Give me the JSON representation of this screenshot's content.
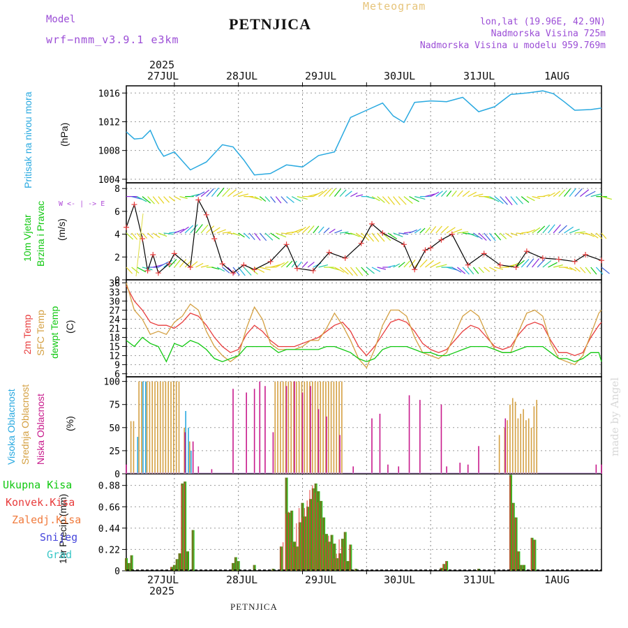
{
  "header": {
    "model_label": "Model",
    "model_name": "wrf−nmm_v3.9.1  e3km",
    "station": "PETNJICA",
    "meteogram": "Meteogram",
    "coords": "lon,lat (19.96E, 42.9N)",
    "elevation": "Nadmorska Visina 725m",
    "model_elevation": "Nadmorska Visina u modelu 959.769m"
  },
  "footer_station": "PETNJICA",
  "watermark": "made by Angel",
  "colors": {
    "blue": "#29a9e0",
    "green": "#10c810",
    "red": "#e83c3c",
    "orange": "#d4a042",
    "magenta": "#c81a8c",
    "violet": "#8c28dc",
    "olive": "#6e7a1e"
  },
  "time_axis": {
    "year": "2025",
    "day_labels": [
      "27JUL",
      "28JUL",
      "29JUL",
      "30JUL",
      "31JUL",
      "1AUG"
    ]
  },
  "chart_data": [
    {
      "type": "line",
      "id": "pressure",
      "ylabel_left": "Pritisak na nivou mora",
      "unit": "(hPa)",
      "ylim": [
        1003.5,
        1017
      ],
      "ticks": [
        "1004",
        "1008",
        "1012",
        "1016"
      ],
      "hours": [
        0,
        3,
        6,
        9,
        12,
        14,
        18,
        24,
        30,
        36,
        40,
        44,
        48,
        54,
        60,
        66,
        72,
        78,
        84,
        90,
        96,
        100,
        104,
        108,
        114,
        120,
        126,
        132,
        138,
        144,
        150,
        156,
        160,
        164,
        168,
        174,
        178
      ],
      "values": [
        1010.6,
        1009.6,
        1009.7,
        1010.8,
        1008.3,
        1007.2,
        1007.8,
        1005.3,
        1006.4,
        1008.8,
        1008.5,
        1006.7,
        1004.6,
        1004.8,
        1006.0,
        1005.7,
        1007.3,
        1007.8,
        1012.6,
        1013.6,
        1014.6,
        1012.8,
        1011.9,
        1014.7,
        1014.9,
        1014.8,
        1015.4,
        1013.4,
        1014.1,
        1015.8,
        1016.0,
        1016.3,
        1015.9,
        1014.8,
        1013.6,
        1013.7,
        1013.9
      ]
    },
    {
      "type": "line",
      "id": "wind",
      "ylabel_left": [
        "10m Vjetar",
        "Brzina i Pravac"
      ],
      "unit": "(m/s)",
      "compass_note": "W <- | -> E",
      "ylim": [
        0,
        8.5
      ],
      "ticks": [
        "0",
        "2",
        "4",
        "6",
        "8"
      ],
      "hours": [
        0,
        3,
        6,
        8,
        10,
        12,
        16,
        18,
        24,
        27,
        30,
        33,
        36,
        40,
        44,
        48,
        54,
        60,
        64,
        70,
        76,
        82,
        88,
        92,
        96,
        104,
        108,
        112,
        114,
        118,
        122,
        128,
        134,
        140,
        146,
        150,
        156,
        162,
        168,
        172,
        178
      ],
      "values": [
        4.6,
        6.6,
        3.6,
        0.8,
        2.2,
        0.6,
        1.4,
        2.3,
        1.1,
        7.0,
        5.7,
        3.6,
        1.4,
        0.6,
        1.3,
        0.9,
        1.6,
        3.1,
        1.0,
        0.8,
        2.4,
        1.9,
        3.2,
        4.9,
        4.1,
        3.1,
        0.9,
        2.6,
        2.8,
        3.5,
        4.0,
        1.3,
        2.3,
        1.3,
        1.1,
        2.5,
        1.9,
        1.8,
        1.6,
        2.2,
        1.7
      ],
      "arrow_levels_ms": [
        7.3,
        4.1,
        1.1
      ]
    },
    {
      "type": "line",
      "id": "temperature",
      "ylabel_left": [
        "2m Temp",
        "SFC Temp",
        "dewpt Temp"
      ],
      "unit": "(C)",
      "ylim": [
        5,
        37
      ],
      "ticks": [
        "6",
        "9",
        "12",
        "15",
        "18",
        "21",
        "24",
        "27",
        "30",
        "33",
        "36"
      ],
      "hours": [
        0,
        3,
        6,
        9,
        12,
        15,
        18,
        21,
        24,
        27,
        30,
        33,
        36,
        39,
        42,
        45,
        48,
        51,
        54,
        57,
        60,
        63,
        66,
        69,
        72,
        75,
        78,
        81,
        84,
        87,
        90,
        93,
        96,
        99,
        102,
        105,
        108,
        111,
        114,
        117,
        120,
        123,
        126,
        129,
        132,
        135,
        138,
        141,
        144,
        147,
        150,
        153,
        156,
        159,
        162,
        165,
        168,
        171,
        174,
        177,
        178
      ],
      "series": [
        {
          "name": "2m Temp",
          "values": [
            35,
            30,
            27,
            23,
            22,
            22,
            21,
            23,
            26,
            25,
            22,
            18,
            15,
            13,
            14,
            19,
            22,
            20,
            17,
            15,
            15,
            15,
            16,
            17,
            18,
            20,
            22,
            23,
            20,
            15,
            12,
            15,
            19,
            23,
            24,
            23,
            20,
            16,
            14,
            13,
            14,
            17,
            20,
            22,
            21,
            18,
            15,
            14,
            15,
            19,
            22,
            23,
            22,
            17,
            13,
            13,
            12,
            13,
            18,
            22,
            23
          ]
        },
        {
          "name": "SFC Temp",
          "values": [
            36,
            27,
            24,
            19,
            20,
            19,
            23,
            25,
            29,
            27,
            20,
            15,
            12,
            10,
            12,
            21,
            28,
            24,
            16,
            14,
            14,
            14,
            15,
            17,
            17,
            21,
            26,
            22,
            17,
            11,
            8,
            14,
            22,
            27,
            27,
            25,
            18,
            13,
            12,
            11,
            13,
            19,
            25,
            27,
            25,
            19,
            14,
            13,
            13,
            20,
            26,
            27,
            25,
            16,
            11,
            10,
            9,
            12,
            19,
            26,
            27
          ]
        },
        {
          "name": "dewpt Temp",
          "values": [
            17,
            15,
            18,
            16,
            15,
            10,
            16,
            15,
            17,
            16,
            14,
            11,
            10,
            11,
            12,
            15,
            15,
            15,
            15,
            13,
            14,
            14,
            14,
            14,
            14,
            15,
            15,
            14,
            13,
            11,
            10,
            11,
            14,
            15,
            15,
            15,
            14,
            13,
            13,
            12,
            12,
            13,
            14,
            15,
            15,
            15,
            14,
            13,
            13,
            14,
            15,
            15,
            15,
            13,
            11,
            11,
            10,
            11,
            13,
            13,
            10
          ]
        }
      ]
    },
    {
      "type": "bar",
      "id": "cloud",
      "ylabel_left": [
        "Visoka Oblacnost",
        "Srednja Oblacnost",
        "Niska Oblacnost"
      ],
      "unit": "(%)",
      "ylim": [
        0,
        105
      ],
      "ticks": [
        "0",
        "25",
        "50",
        "75",
        "100"
      ],
      "series": [
        {
          "name": "Visoka Oblacnost",
          "hours": [
            4,
            6,
            7,
            22,
            23,
            24
          ],
          "values": [
            40,
            100,
            100,
            68,
            50,
            25
          ]
        },
        {
          "name": "Srednja Oblacnost",
          "hours": [
            2,
            3,
            5,
            6,
            8,
            9,
            10,
            11,
            12,
            13,
            14,
            15,
            16,
            17,
            18,
            19,
            20,
            22,
            24,
            56,
            57,
            58,
            59,
            60,
            61,
            62,
            63,
            64,
            65,
            66,
            67,
            68,
            69,
            70,
            71,
            72,
            73,
            74,
            75,
            76,
            77,
            78,
            79,
            80,
            81,
            140,
            142,
            143,
            144,
            145,
            146,
            147,
            148,
            149,
            150,
            151,
            152,
            153,
            154
          ],
          "values": [
            57,
            57,
            100,
            100,
            100,
            100,
            100,
            100,
            100,
            100,
            100,
            100,
            100,
            100,
            100,
            100,
            100,
            50,
            35,
            100,
            100,
            100,
            100,
            100,
            100,
            100,
            100,
            100,
            100,
            100,
            100,
            100,
            100,
            100,
            100,
            100,
            100,
            100,
            100,
            100,
            100,
            100,
            100,
            100,
            100,
            42,
            50,
            58,
            75,
            82,
            78,
            60,
            65,
            70,
            58,
            60,
            50,
            73,
            80
          ]
        },
        {
          "name": "Niska Oblacnost",
          "hours": [
            0,
            22,
            25,
            27,
            32,
            40,
            45,
            48,
            50,
            52,
            55,
            60,
            63,
            66,
            69,
            72,
            75,
            80,
            85,
            92,
            95,
            98,
            102,
            106,
            110,
            118,
            120,
            125,
            128,
            132,
            142,
            176,
            178
          ],
          "values": [
            10,
            45,
            35,
            8,
            5,
            92,
            88,
            92,
            100,
            95,
            45,
            95,
            100,
            88,
            95,
            70,
            62,
            42,
            8,
            60,
            65,
            10,
            8,
            85,
            80,
            75,
            8,
            12,
            10,
            30,
            60,
            10,
            10
          ]
        }
      ]
    },
    {
      "type": "bar",
      "id": "precip",
      "ylabel_left": "1hr Precip (mm)",
      "legend": [
        "Ukupna Kisa",
        "Konvek.Kisa",
        "Zaledj.Kisa",
        "Snijeg",
        "Grad"
      ],
      "ylim": [
        0,
        1.0
      ],
      "ticks": [
        "0",
        "0.22",
        "0.44",
        "0.66",
        "0.88"
      ],
      "series": [
        {
          "name": "Ukupna Kisa",
          "hours": [
            0,
            1,
            2,
            17,
            18,
            19,
            20,
            21,
            22,
            23,
            25,
            40,
            41,
            42,
            48,
            55,
            58,
            60,
            61,
            62,
            63,
            64,
            65,
            66,
            67,
            68,
            69,
            70,
            71,
            72,
            73,
            74,
            75,
            76,
            77,
            78,
            79,
            80,
            81,
            82,
            83,
            84,
            86,
            118,
            119,
            120,
            132,
            144,
            145,
            146,
            147,
            148,
            149,
            152,
            153
          ],
          "values": [
            0.13,
            0.08,
            0.16,
            0.04,
            0.06,
            0.12,
            0.18,
            0.9,
            0.92,
            0.2,
            0.42,
            0.08,
            0.14,
            0.1,
            0.06,
            0.02,
            0.25,
            0.96,
            0.6,
            0.62,
            0.3,
            0.25,
            0.5,
            0.7,
            0.56,
            0.66,
            0.74,
            0.85,
            0.9,
            0.82,
            0.72,
            0.55,
            0.38,
            0.3,
            0.37,
            0.28,
            0.13,
            0.18,
            0.33,
            0.4,
            0.1,
            0.27,
            0.02,
            0.03,
            0.07,
            0.1,
            0.02,
            0.99,
            0.7,
            0.55,
            0.2,
            0.06,
            0.06,
            0.34,
            0.32
          ]
        },
        {
          "name": "Konvek.Kisa",
          "hours": [
            17,
            21,
            22,
            58,
            59,
            60,
            61,
            62,
            63,
            64,
            65,
            66,
            67,
            68,
            69,
            70,
            71,
            72,
            73,
            74,
            75,
            76,
            77,
            78,
            79,
            80,
            81,
            82,
            84,
            118,
            119,
            120,
            144,
            145,
            146,
            147,
            152,
            153
          ],
          "values": [
            0.04,
            0.9,
            0.92,
            0.25,
            0.3,
            0.6,
            0.62,
            0.3,
            0.25,
            0.5,
            0.66,
            0.56,
            0.66,
            0.74,
            0.85,
            0.9,
            0.82,
            0.72,
            0.55,
            0.38,
            0.3,
            0.37,
            0.28,
            0.13,
            0.18,
            0.33,
            0.25,
            0.1,
            0.27,
            0.03,
            0.07,
            0.1,
            0.99,
            0.7,
            0.55,
            0.2,
            0.34,
            0.32
          ]
        }
      ]
    }
  ]
}
